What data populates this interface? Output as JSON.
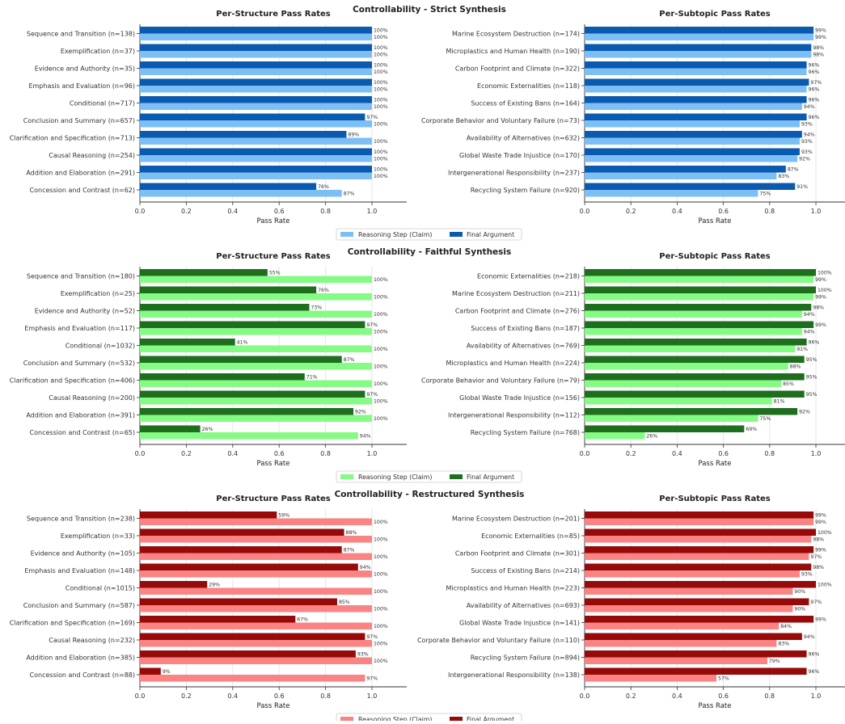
{
  "legend_labels": {
    "claim": "Reasoning Step (Claim)",
    "final": "Final Argument"
  },
  "chart_data": [
    {
      "type": "bar",
      "orientation": "horizontal",
      "suptitle": "Controllability - Strict Synthesis",
      "title": "Per-Structure Pass Rates",
      "xlabel": "Pass Rate",
      "xlim": [
        0,
        1.15
      ],
      "xticks": [
        "0.0",
        "0.2",
        "0.4",
        "0.6",
        "0.8",
        "1.0"
      ],
      "grid": "x",
      "legend_position": "bottom-center",
      "colors": {
        "claim": "#7dbff5",
        "final": "#0a5bb0"
      },
      "categories": [
        "Sequence and Transition (n=138)",
        "Exemplification (n=37)",
        "Evidence and Authority (n=35)",
        "Emphasis and Evaluation (n=96)",
        "Conditional (n=717)",
        "Conclusion and Summary (n=657)",
        "Clarification and Specification (n=713)",
        "Causal Reasoning (n=254)",
        "Addition and Elaboration (n=291)",
        "Concession and Contrast (n=62)"
      ],
      "series": [
        {
          "name": "Reasoning Step (Claim)",
          "values": [
            1.0,
            1.0,
            1.0,
            1.0,
            1.0,
            1.0,
            1.0,
            1.0,
            1.0,
            0.87
          ],
          "labels": [
            "100%",
            "100%",
            "100%",
            "100%",
            "100%",
            "100%",
            "100%",
            "100%",
            "100%",
            "87%"
          ]
        },
        {
          "name": "Final Argument",
          "values": [
            1.0,
            1.0,
            1.0,
            1.0,
            1.0,
            0.97,
            0.89,
            1.0,
            1.0,
            0.76
          ],
          "labels": [
            "100%",
            "100%",
            "100%",
            "100%",
            "100%",
            "97%",
            "89%",
            "100%",
            "100%",
            "76%"
          ]
        }
      ]
    },
    {
      "type": "bar",
      "orientation": "horizontal",
      "title": "Per-Subtopic Pass Rates",
      "xlabel": "Pass Rate",
      "xlim": [
        0,
        1.15
      ],
      "xticks": [
        "0.0",
        "0.2",
        "0.4",
        "0.6",
        "0.8",
        "1.0"
      ],
      "grid": "x",
      "colors": {
        "claim": "#7dbff5",
        "final": "#0a5bb0"
      },
      "categories": [
        "Marine Ecosystem Destruction (n=174)",
        "Microplastics and Human Health (n=190)",
        "Carbon Footprint and Climate (n=322)",
        "Economic Externalities (n=118)",
        "Success of Existing Bans (n=164)",
        "Corporate Behavior and Voluntary Failure (n=73)",
        "Availability of Alternatives (n=632)",
        "Global Waste Trade Injustice (n=170)",
        "Intergenerational Responsibility (n=237)",
        "Recycling System Failure (n=920)"
      ],
      "series": [
        {
          "name": "Reasoning Step (Claim)",
          "values": [
            0.99,
            0.98,
            0.96,
            0.96,
            0.94,
            0.93,
            0.93,
            0.92,
            0.83,
            0.75
          ],
          "labels": [
            "99%",
            "98%",
            "96%",
            "96%",
            "94%",
            "93%",
            "93%",
            "92%",
            "83%",
            "75%"
          ]
        },
        {
          "name": "Final Argument",
          "values": [
            0.99,
            0.98,
            0.96,
            0.97,
            0.96,
            0.96,
            0.94,
            0.93,
            0.87,
            0.91
          ],
          "labels": [
            "99%",
            "98%",
            "96%",
            "97%",
            "96%",
            "96%",
            "94%",
            "93%",
            "87%",
            "91%"
          ]
        }
      ]
    },
    {
      "type": "bar",
      "orientation": "horizontal",
      "suptitle": "Controllability - Faithful Synthesis",
      "title": "Per-Structure Pass Rates",
      "xlabel": "Pass Rate",
      "xlim": [
        0,
        1.15
      ],
      "xticks": [
        "0.0",
        "0.2",
        "0.4",
        "0.6",
        "0.8",
        "1.0"
      ],
      "grid": "x",
      "legend_position": "bottom-center",
      "colors": {
        "claim": "#85fa85",
        "final": "#1e6e1e"
      },
      "categories": [
        "Sequence and Transition (n=180)",
        "Exemplification (n=25)",
        "Evidence and Authority (n=52)",
        "Emphasis and Evaluation (n=117)",
        "Conditional (n=1032)",
        "Conclusion and Summary (n=532)",
        "Clarification and Specification (n=406)",
        "Causal Reasoning (n=200)",
        "Addition and Elaboration (n=391)",
        "Concession and Contrast (n=65)"
      ],
      "series": [
        {
          "name": "Reasoning Step (Claim)",
          "values": [
            1.0,
            1.0,
            1.0,
            1.0,
            1.0,
            1.0,
            1.0,
            1.0,
            1.0,
            0.94
          ],
          "labels": [
            "100%",
            "100%",
            "100%",
            "100%",
            "100%",
            "100%",
            "100%",
            "100%",
            "100%",
            "94%"
          ]
        },
        {
          "name": "Final Argument",
          "values": [
            0.55,
            0.76,
            0.73,
            0.97,
            0.41,
            0.87,
            0.71,
            0.97,
            0.92,
            0.26
          ],
          "labels": [
            "55%",
            "76%",
            "73%",
            "97%",
            "41%",
            "87%",
            "71%",
            "97%",
            "92%",
            "26%"
          ]
        }
      ]
    },
    {
      "type": "bar",
      "orientation": "horizontal",
      "title": "Per-Subtopic Pass Rates",
      "xlabel": "Pass Rate",
      "xlim": [
        0,
        1.15
      ],
      "xticks": [
        "0.0",
        "0.2",
        "0.4",
        "0.6",
        "0.8",
        "1.0"
      ],
      "grid": "x",
      "colors": {
        "claim": "#85fa85",
        "final": "#1e6e1e"
      },
      "categories": [
        "Economic Externalities (n=218)",
        "Marine Ecosystem Destruction (n=211)",
        "Carbon Footprint and Climate (n=276)",
        "Success of Existing Bans (n=187)",
        "Availability of Alternatives (n=769)",
        "Microplastics and Human Health (n=224)",
        "Corporate Behavior and Voluntary Failure (n=79)",
        "Global Waste Trade Injustice (n=156)",
        "Intergenerational Responsibility (n=112)",
        "Recycling System Failure (n=768)"
      ],
      "series": [
        {
          "name": "Reasoning Step (Claim)",
          "values": [
            0.99,
            0.99,
            0.94,
            0.94,
            0.91,
            0.88,
            0.85,
            0.81,
            0.75,
            0.26
          ],
          "labels": [
            "99%",
            "99%",
            "94%",
            "94%",
            "91%",
            "88%",
            "85%",
            "81%",
            "75%",
            "26%"
          ]
        },
        {
          "name": "Final Argument",
          "values": [
            1.0,
            1.0,
            0.98,
            0.99,
            0.96,
            0.95,
            0.95,
            0.95,
            0.92,
            0.69
          ],
          "labels": [
            "100%",
            "100%",
            "98%",
            "99%",
            "96%",
            "95%",
            "95%",
            "95%",
            "92%",
            "69%"
          ]
        }
      ]
    },
    {
      "type": "bar",
      "orientation": "horizontal",
      "suptitle": "Controllability - Restructured Synthesis",
      "title": "Per-Structure Pass Rates",
      "xlabel": "Pass Rate",
      "xlim": [
        0,
        1.15
      ],
      "xticks": [
        "0.0",
        "0.2",
        "0.4",
        "0.6",
        "0.8",
        "1.0"
      ],
      "grid": "x",
      "legend_position": "bottom-center",
      "colors": {
        "claim": "#fa8383",
        "final": "#960a0a"
      },
      "categories": [
        "Sequence and Transition (n=238)",
        "Exemplification (n=33)",
        "Evidence and Authority (n=105)",
        "Emphasis and Evaluation (n=148)",
        "Conditional (n=1015)",
        "Conclusion and Summary (n=587)",
        "Clarification and Specification (n=169)",
        "Causal Reasoning (n=232)",
        "Addition and Elaboration (n=385)",
        "Concession and Contrast (n=88)"
      ],
      "series": [
        {
          "name": "Reasoning Step (Claim)",
          "values": [
            1.0,
            1.0,
            1.0,
            1.0,
            1.0,
            1.0,
            1.0,
            1.0,
            1.0,
            0.97
          ],
          "labels": [
            "100%",
            "100%",
            "100%",
            "100%",
            "100%",
            "100%",
            "100%",
            "100%",
            "100%",
            "97%"
          ]
        },
        {
          "name": "Final Argument",
          "values": [
            0.59,
            0.88,
            0.87,
            0.94,
            0.29,
            0.85,
            0.67,
            0.97,
            0.93,
            0.09
          ],
          "labels": [
            "59%",
            "88%",
            "87%",
            "94%",
            "29%",
            "85%",
            "67%",
            "97%",
            "93%",
            "9%"
          ]
        }
      ]
    },
    {
      "type": "bar",
      "orientation": "horizontal",
      "title": "Per-Subtopic Pass Rates",
      "xlabel": "Pass Rate",
      "xlim": [
        0,
        1.15
      ],
      "xticks": [
        "0.0",
        "0.2",
        "0.4",
        "0.6",
        "0.8",
        "1.0"
      ],
      "grid": "x",
      "colors": {
        "claim": "#fa8383",
        "final": "#960a0a"
      },
      "categories": [
        "Marine Ecosystem Destruction (n=201)",
        "Economic Externalities (n=85)",
        "Carbon Footprint and Climate (n=301)",
        "Success of Existing Bans (n=214)",
        "Microplastics and Human Health (n=223)",
        "Availability of Alternatives (n=693)",
        "Global Waste Trade Injustice (n=141)",
        "Corporate Behavior and Voluntary Failure (n=110)",
        "Recycling System Failure (n=894)",
        "Intergenerational Responsibility (n=138)"
      ],
      "series": [
        {
          "name": "Reasoning Step (Claim)",
          "values": [
            0.99,
            0.98,
            0.97,
            0.93,
            0.9,
            0.9,
            0.84,
            0.83,
            0.79,
            0.57
          ],
          "labels": [
            "99%",
            "98%",
            "97%",
            "93%",
            "90%",
            "90%",
            "84%",
            "83%",
            "79%",
            "57%"
          ]
        },
        {
          "name": "Final Argument",
          "values": [
            0.99,
            1.0,
            0.99,
            0.98,
            1.0,
            0.97,
            0.99,
            0.94,
            0.96,
            0.96
          ],
          "labels": [
            "99%",
            "100%",
            "99%",
            "98%",
            "100%",
            "97%",
            "99%",
            "94%",
            "96%",
            "96%"
          ]
        }
      ]
    }
  ]
}
